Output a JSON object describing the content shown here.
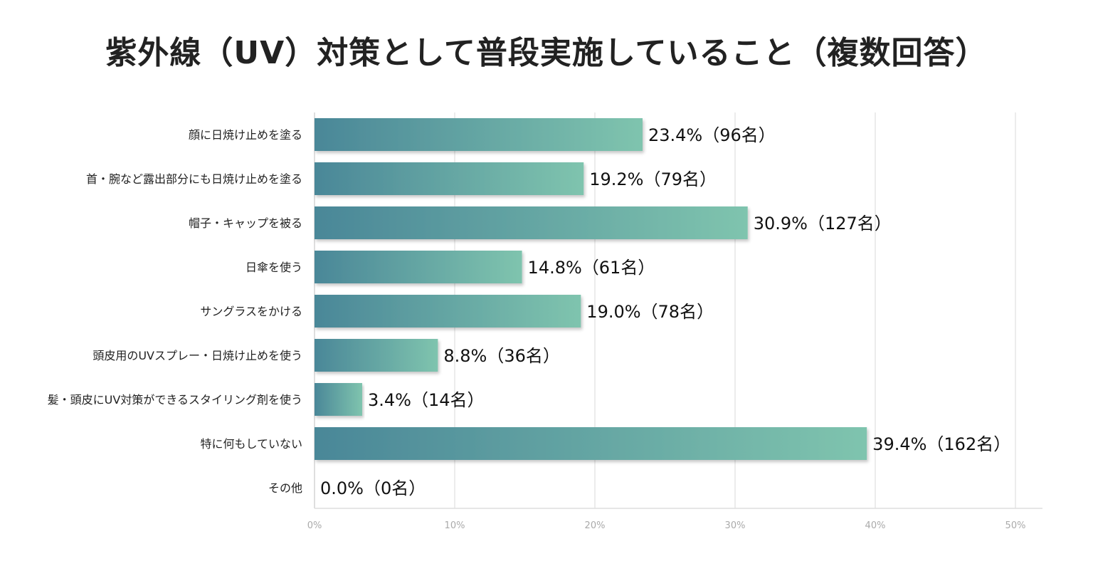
{
  "chart_data": {
    "type": "bar",
    "orientation": "horizontal",
    "title": "紫外線（UV）対策として普段実施していること（複数回答）",
    "categories": [
      "顔に日焼け止めを塗る",
      "首・腕など露出部分にも日焼け止めを塗る",
      "帽子・キャップを被る",
      "日傘を使う",
      "サングラスをかける",
      "頭皮用のUVスプレー・日焼け止めを使う",
      "髪・頭皮にUV対策ができるスタイリング剤を使う",
      "特に何もしていない",
      "その他"
    ],
    "values": [
      23.4,
      19.2,
      30.9,
      14.8,
      19.0,
      8.8,
      3.4,
      39.4,
      0.0
    ],
    "data_labels": [
      "23.4%（96名）",
      "19.2%（79名）",
      "30.9%（127名）",
      "14.8%（61名）",
      "19.0%（78名）",
      "8.8%（36名）",
      "3.4%（14名）",
      "39.4%（162名）",
      "0.0%（0名）"
    ],
    "xlim": [
      0,
      50
    ],
    "x_ticks": [
      "0%",
      "10%",
      "20%",
      "30%",
      "40%",
      "50%"
    ],
    "xlabel": "",
    "ylabel": "",
    "grid": true,
    "legend": "none",
    "colors": {
      "bar_start": "#4a8798",
      "bar_end": "#7fc4ae",
      "grid": "#e6e6e6"
    }
  }
}
